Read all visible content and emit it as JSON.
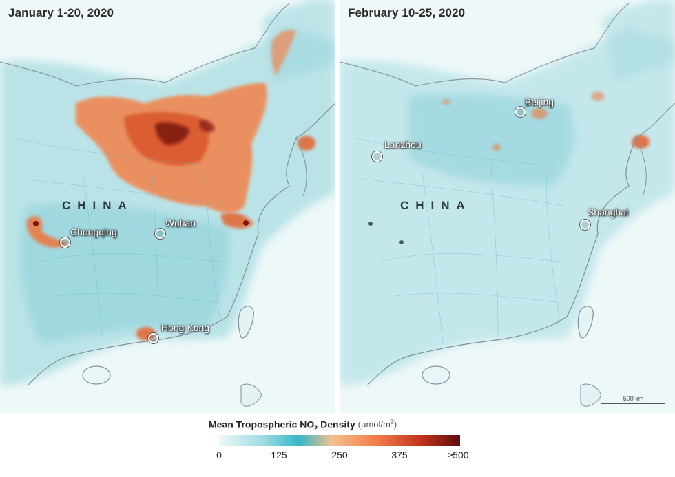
{
  "panels": [
    {
      "title": "January 1-20, 2020",
      "country": "CHINA",
      "cities": [
        "Chongqing",
        "Wuhan",
        "Hong Kong"
      ]
    },
    {
      "title": "February 10-25, 2020",
      "country": "CHINA",
      "cities": [
        "Beijing",
        "Lanzhou",
        "Shanghai"
      ],
      "scale": "500 km"
    }
  ],
  "legend": {
    "title_main": "Mean Tropospheric NO",
    "title_sub": "2",
    "title_rest": " Density",
    "unit_prefix": "(µmol/m",
    "unit_sup": "2",
    "unit_suffix": ")",
    "ticks": [
      "0",
      "125",
      "250",
      "375",
      "≥500"
    ],
    "colors": [
      "#eef8f8",
      "#9fdde2",
      "#37b7c9",
      "#f2c08e",
      "#f07a48",
      "#c2321d",
      "#5b0c0c"
    ]
  }
}
